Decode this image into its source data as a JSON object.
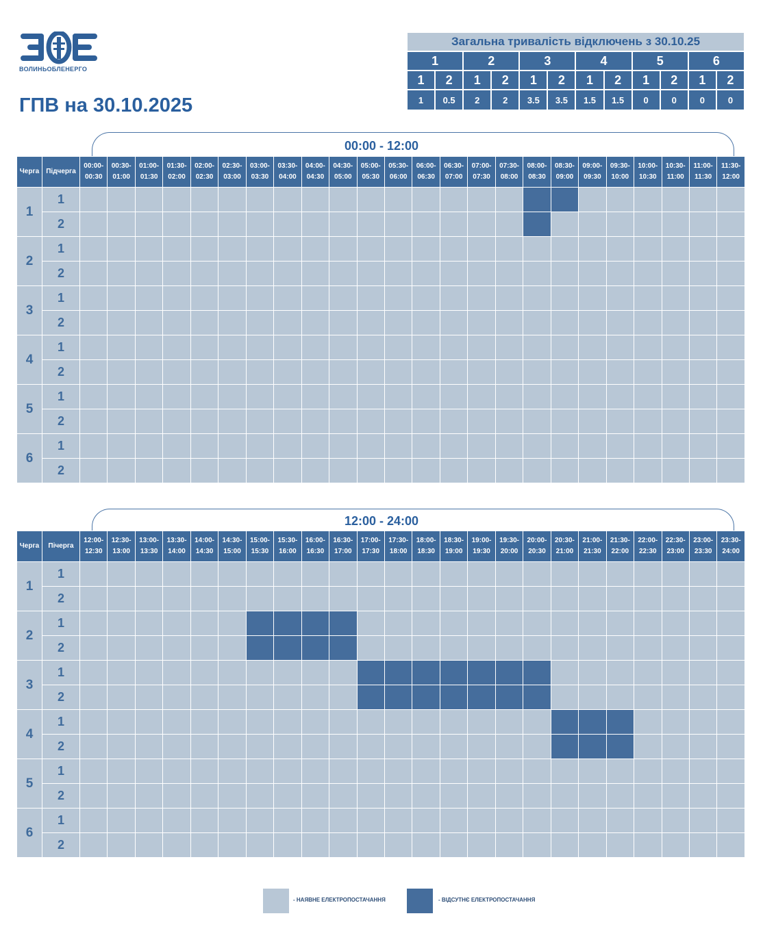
{
  "logo": {
    "text": "ВОЛИНЬОБЛЕНЕРГО",
    "colors": {
      "primary": "#2f5f98"
    }
  },
  "title": "ГПВ на 30.10.2025",
  "summary": {
    "title": "Загальна тривалість відключень з 30.10.25",
    "queues": [
      "1",
      "2",
      "3",
      "4",
      "5",
      "6"
    ],
    "subqueues": [
      "1",
      "2",
      "1",
      "2",
      "1",
      "2",
      "1",
      "2",
      "1",
      "2",
      "1",
      "2"
    ],
    "values": [
      "1",
      "0.5",
      "2",
      "2",
      "3.5",
      "3.5",
      "1.5",
      "1.5",
      "0",
      "0",
      "0",
      "0"
    ]
  },
  "sections": [
    {
      "range_label": "00:00 - 12:00",
      "queue_header": "Черга",
      "subqueue_header": "Підчерга",
      "slots": [
        "00:00-00:30",
        "00:30-01:00",
        "01:00-01:30",
        "01:30-02:00",
        "02:00-02:30",
        "02:30-03:00",
        "03:00-03:30",
        "03:30-04:00",
        "04:00-04:30",
        "04:30-05:00",
        "05:00-05:30",
        "05:30-06:00",
        "06:00-06:30",
        "06:30-07:00",
        "07:00-07:30",
        "07:30-08:00",
        "08:00-08:30",
        "08:30-09:00",
        "09:00-09:30",
        "09:30-10:00",
        "10:00-10:30",
        "10:30-11:00",
        "11:00-11:30",
        "11:30-12:00"
      ],
      "rows": [
        {
          "queue": "1",
          "sub": "1",
          "off": [
            16,
            17
          ]
        },
        {
          "queue": "1",
          "sub": "2",
          "off": [
            16
          ]
        },
        {
          "queue": "2",
          "sub": "1",
          "off": []
        },
        {
          "queue": "2",
          "sub": "2",
          "off": []
        },
        {
          "queue": "3",
          "sub": "1",
          "off": []
        },
        {
          "queue": "3",
          "sub": "2",
          "off": []
        },
        {
          "queue": "4",
          "sub": "1",
          "off": []
        },
        {
          "queue": "4",
          "sub": "2",
          "off": []
        },
        {
          "queue": "5",
          "sub": "1",
          "off": []
        },
        {
          "queue": "5",
          "sub": "2",
          "off": []
        },
        {
          "queue": "6",
          "sub": "1",
          "off": []
        },
        {
          "queue": "6",
          "sub": "2",
          "off": []
        }
      ]
    },
    {
      "range_label": "12:00 - 24:00",
      "queue_header": "Черга",
      "subqueue_header": "Пічерга",
      "slots": [
        "12:00-12:30",
        "12:30-13:00",
        "13:00-13:30",
        "13:30-14:00",
        "14:00-14:30",
        "14:30-15:00",
        "15:00-15:30",
        "15:30-16:00",
        "16:00-16:30",
        "16:30-17:00",
        "17:00-17:30",
        "17:30-18:00",
        "18:00-18:30",
        "18:30-19:00",
        "19:00-19:30",
        "19:30-20:00",
        "20:00-20:30",
        "20:30-21:00",
        "21:00-21:30",
        "21:30-22:00",
        "22:00-22:30",
        "22:30-23:00",
        "23:00-23:30",
        "23:30-24:00"
      ],
      "rows": [
        {
          "queue": "1",
          "sub": "1",
          "off": []
        },
        {
          "queue": "1",
          "sub": "2",
          "off": []
        },
        {
          "queue": "2",
          "sub": "1",
          "off": [
            6,
            7,
            8,
            9
          ]
        },
        {
          "queue": "2",
          "sub": "2",
          "off": [
            6,
            7,
            8,
            9
          ]
        },
        {
          "queue": "3",
          "sub": "1",
          "off": [
            10,
            11,
            12,
            13,
            14,
            15,
            16
          ]
        },
        {
          "queue": "3",
          "sub": "2",
          "off": [
            10,
            11,
            12,
            13,
            14,
            15,
            16
          ]
        },
        {
          "queue": "4",
          "sub": "1",
          "off": [
            17,
            18,
            19
          ]
        },
        {
          "queue": "4",
          "sub": "2",
          "off": [
            17,
            18,
            19
          ]
        },
        {
          "queue": "5",
          "sub": "1",
          "off": []
        },
        {
          "queue": "5",
          "sub": "2",
          "off": []
        },
        {
          "queue": "6",
          "sub": "1",
          "off": []
        },
        {
          "queue": "6",
          "sub": "2",
          "off": []
        }
      ]
    }
  ],
  "legend": {
    "on_label": "- НАЯВНЕ ЕЛЕКТРОПОСТАЧАННЯ",
    "off_label": "- ВІДСУТНЄ ЕЛЕКТРОПОСТАЧАННЯ",
    "on_color": "#b8c7d6",
    "off_color": "#456d9c"
  }
}
